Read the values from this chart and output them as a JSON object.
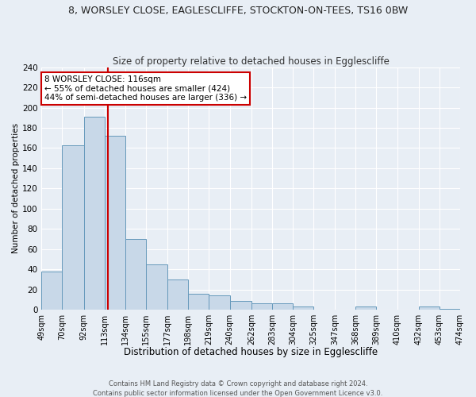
{
  "title": "8, WORSLEY CLOSE, EAGLESCLIFFE, STOCKTON-ON-TEES, TS16 0BW",
  "subtitle": "Size of property relative to detached houses in Egglescliffe",
  "xlabel": "Distribution of detached houses by size in Egglescliffe",
  "ylabel": "Number of detached properties",
  "bar_left_edges": [
    49,
    70,
    92,
    113,
    134,
    155,
    177,
    198,
    219,
    240,
    262,
    283,
    304,
    325,
    347,
    368,
    389,
    410,
    432,
    453
  ],
  "bar_widths": [
    21,
    22,
    21,
    21,
    21,
    22,
    21,
    21,
    21,
    22,
    21,
    21,
    21,
    22,
    21,
    21,
    21,
    22,
    21,
    21
  ],
  "bar_heights": [
    38,
    163,
    191,
    172,
    70,
    45,
    30,
    16,
    14,
    9,
    6,
    6,
    3,
    0,
    0,
    3,
    0,
    0,
    3,
    1
  ],
  "bar_color": "#c8d8e8",
  "bar_edgecolor": "#6699bb",
  "vline_x": 116,
  "vline_color": "#cc0000",
  "ylim": [
    0,
    240
  ],
  "yticks": [
    0,
    20,
    40,
    60,
    80,
    100,
    120,
    140,
    160,
    180,
    200,
    220,
    240
  ],
  "xtick_labels": [
    "49sqm",
    "70sqm",
    "92sqm",
    "113sqm",
    "134sqm",
    "155sqm",
    "177sqm",
    "198sqm",
    "219sqm",
    "240sqm",
    "262sqm",
    "283sqm",
    "304sqm",
    "325sqm",
    "347sqm",
    "368sqm",
    "389sqm",
    "410sqm",
    "432sqm",
    "453sqm",
    "474sqm"
  ],
  "xtick_positions": [
    49,
    70,
    92,
    113,
    134,
    155,
    177,
    198,
    219,
    240,
    262,
    283,
    304,
    325,
    347,
    368,
    389,
    410,
    432,
    453,
    474
  ],
  "annotation_box_text": "8 WORSLEY CLOSE: 116sqm\n← 55% of detached houses are smaller (424)\n44% of semi-detached houses are larger (336) →",
  "annotation_box_color": "#ffffff",
  "annotation_box_edgecolor": "#cc0000",
  "bg_color": "#e8eef5",
  "grid_color": "#ffffff",
  "footer_line1": "Contains HM Land Registry data © Crown copyright and database right 2024.",
  "footer_line2": "Contains public sector information licensed under the Open Government Licence v3.0."
}
